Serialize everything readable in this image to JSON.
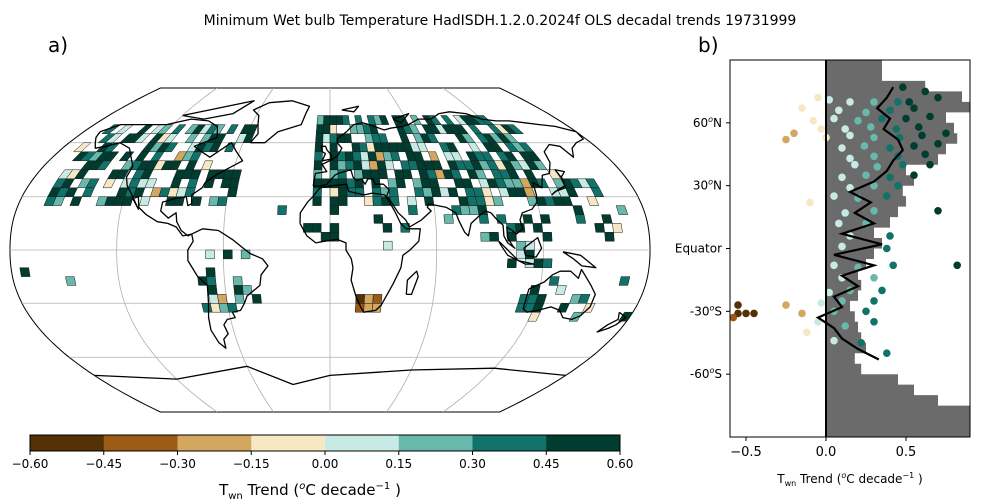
{
  "title": "Minimum Wet bulb Temperature HadISDH.1.2.0.2024f OLS decadal trends 19731999",
  "panel_a_label": "a)",
  "panel_b_label": "b)",
  "colorbar": {
    "ticks": [
      "−0.60",
      "−0.45",
      "−0.30",
      "−0.15",
      "0.00",
      "0.15",
      "0.30",
      "0.45",
      "0.60"
    ],
    "colors": [
      "#543005",
      "#9b5a16",
      "#d4a760",
      "#f6e8c3",
      "#c7eae5",
      "#68b8ab",
      "#117269",
      "#003c30"
    ],
    "label_main": "T",
    "label_sub": "wn",
    "label_rest_a": " Trend (",
    "label_sup_o": "o",
    "label_rest_b": "C decade",
    "label_sup_exp": "−1",
    "label_rest_c": " )"
  },
  "map_colors": {
    "land": "#ffffff",
    "grid": "#b0b0b0",
    "coast": "#000000"
  },
  "chart_data": [
    {
      "type": "map",
      "projection": "Robinson",
      "title": "Minimum Wet bulb Temperature HadISDH.1.2.0.2024f OLS decadal trends 19731999",
      "gridboxes": [
        {
          "region": "North America",
          "lat": [
            25,
            70
          ],
          "lon": [
            -165,
            -55
          ],
          "dominant_trend": 0.45
        },
        {
          "region": "Europe/Asia",
          "lat": [
            25,
            72
          ],
          "lon": [
            -10,
            140
          ],
          "dominant_trend": 0.45
        },
        {
          "region": "Southern Africa",
          "lat": [
            -35,
            -25
          ],
          "lon": [
            15,
            30
          ],
          "dominant_trend": -0.45
        },
        {
          "region": "South America",
          "lat": [
            -35,
            5
          ],
          "lon": [
            -75,
            -35
          ],
          "dominant_trend": 0.3
        },
        {
          "region": "Australia",
          "lat": [
            -40,
            -15
          ],
          "lon": [
            115,
            155
          ],
          "dominant_trend": 0.15
        }
      ]
    },
    {
      "type": "scatter",
      "xlabel_main": "T",
      "xlabel_sub": "wn",
      "xlabel_rest": " Trend (",
      "xlim": [
        -0.6,
        0.9
      ],
      "ylim": [
        -90,
        90
      ],
      "xticks": [
        "−0.5",
        "0.0",
        "0.5"
      ],
      "xtick_values": [
        -0.5,
        0.0,
        0.5
      ],
      "yticks": [
        "60",
        "30",
        "Equator",
        "-30",
        "-60"
      ],
      "ytick_values": [
        60,
        30,
        0,
        -30,
        -60
      ],
      "ytick_suffix_n": "N",
      "ytick_suffix_s": "S",
      "ytick_sup": "o",
      "xlabel_after_sup": "C decade",
      "xlabel_exp": "−1",
      "xlabel_close": " )",
      "zero_line": true,
      "coverage_profile_lat": [
        80,
        75,
        70,
        65,
        60,
        55,
        50,
        45,
        40,
        35,
        30,
        25,
        20,
        15,
        10,
        5,
        0,
        -5,
        -10,
        -15,
        -20,
        -25,
        -30,
        -35,
        -40,
        -45,
        -50,
        -55,
        -60,
        -65,
        -70,
        -75,
        -80,
        -85,
        -90
      ],
      "coverage_profile_x": [
        0.35,
        0.62,
        0.85,
        0.9,
        0.75,
        0.8,
        0.82,
        0.75,
        0.7,
        0.5,
        0.55,
        0.48,
        0.5,
        0.45,
        0.4,
        0.3,
        0.35,
        0.3,
        0.25,
        0.2,
        0.22,
        0.2,
        0.15,
        0.18,
        0.2,
        0.22,
        0.25,
        0.18,
        0.22,
        0.45,
        0.55,
        0.7,
        0.9,
        0.9,
        0.9
      ],
      "mean_line": {
        "lat": [
          77,
          72,
          67,
          62,
          57,
          52,
          47,
          42,
          37,
          32,
          27,
          22,
          17,
          12,
          7,
          2,
          -3,
          -8,
          -13,
          -18,
          -23,
          -28,
          -33,
          -38,
          -43,
          -48,
          -53
        ],
        "values": [
          0.42,
          0.38,
          0.32,
          0.4,
          0.36,
          0.45,
          0.48,
          0.42,
          0.38,
          0.3,
          0.15,
          0.28,
          0.18,
          0.3,
          0.1,
          0.35,
          0.05,
          0.3,
          0.1,
          0.2,
          0.05,
          0.1,
          -0.05,
          0.05,
          0.1,
          0.2,
          0.33
        ]
      },
      "points": [
        {
          "x": 0.48,
          "y": 77,
          "c": "#003c30"
        },
        {
          "x": 0.62,
          "y": 75,
          "c": "#003c30"
        },
        {
          "x": 0.7,
          "y": 72,
          "c": "#003c30"
        },
        {
          "x": 0.52,
          "y": 70,
          "c": "#003c30"
        },
        {
          "x": 0.45,
          "y": 70,
          "c": "#117269"
        },
        {
          "x": 0.3,
          "y": 70,
          "c": "#68b8ab"
        },
        {
          "x": 0.15,
          "y": 70,
          "c": "#c7eae5"
        },
        {
          "x": 0.02,
          "y": 71,
          "c": "#c7eae5"
        },
        {
          "x": -0.05,
          "y": 72,
          "c": "#f6e8c3"
        },
        {
          "x": 0.55,
          "y": 67,
          "c": "#003c30"
        },
        {
          "x": 0.4,
          "y": 66,
          "c": "#117269"
        },
        {
          "x": 0.25,
          "y": 65,
          "c": "#68b8ab"
        },
        {
          "x": 0.08,
          "y": 66,
          "c": "#c7eae5"
        },
        {
          "x": -0.15,
          "y": 67,
          "c": "#f6e8c3"
        },
        {
          "x": 0.65,
          "y": 63,
          "c": "#003c30"
        },
        {
          "x": 0.5,
          "y": 62,
          "c": "#003c30"
        },
        {
          "x": 0.35,
          "y": 62,
          "c": "#117269"
        },
        {
          "x": 0.2,
          "y": 61,
          "c": "#68b8ab"
        },
        {
          "x": 0.05,
          "y": 62,
          "c": "#c7eae5"
        },
        {
          "x": -0.08,
          "y": 61,
          "c": "#f6e8c3"
        },
        {
          "x": 0.58,
          "y": 58,
          "c": "#003c30"
        },
        {
          "x": 0.44,
          "y": 57,
          "c": "#117269"
        },
        {
          "x": 0.28,
          "y": 58,
          "c": "#68b8ab"
        },
        {
          "x": 0.12,
          "y": 57,
          "c": "#c7eae5"
        },
        {
          "x": -0.03,
          "y": 57,
          "c": "#f6e8c3"
        },
        {
          "x": 0.75,
          "y": 55,
          "c": "#003c30"
        },
        {
          "x": 0.6,
          "y": 54,
          "c": "#003c30"
        },
        {
          "x": 0.46,
          "y": 53,
          "c": "#117269"
        },
        {
          "x": 0.3,
          "y": 53,
          "c": "#68b8ab"
        },
        {
          "x": 0.15,
          "y": 54,
          "c": "#c7eae5"
        },
        {
          "x": 0.0,
          "y": 53,
          "c": "#f6e8c3"
        },
        {
          "x": -0.2,
          "y": 55,
          "c": "#d4a760"
        },
        {
          "x": -0.25,
          "y": 52,
          "c": "#d4a760"
        },
        {
          "x": 0.7,
          "y": 50,
          "c": "#003c30"
        },
        {
          "x": 0.55,
          "y": 49,
          "c": "#003c30"
        },
        {
          "x": 0.4,
          "y": 48,
          "c": "#117269"
        },
        {
          "x": 0.24,
          "y": 49,
          "c": "#68b8ab"
        },
        {
          "x": 0.1,
          "y": 48,
          "c": "#c7eae5"
        },
        {
          "x": 0.62,
          "y": 45,
          "c": "#003c30"
        },
        {
          "x": 0.45,
          "y": 44,
          "c": "#117269"
        },
        {
          "x": 0.3,
          "y": 44,
          "c": "#68b8ab"
        },
        {
          "x": 0.15,
          "y": 43,
          "c": "#c7eae5"
        },
        {
          "x": 0.65,
          "y": 40,
          "c": "#003c30"
        },
        {
          "x": 0.48,
          "y": 40,
          "c": "#117269"
        },
        {
          "x": 0.32,
          "y": 39,
          "c": "#68b8ab"
        },
        {
          "x": 0.18,
          "y": 40,
          "c": "#c7eae5"
        },
        {
          "x": 0.55,
          "y": 35,
          "c": "#003c30"
        },
        {
          "x": 0.4,
          "y": 34,
          "c": "#117269"
        },
        {
          "x": 0.25,
          "y": 35,
          "c": "#68b8ab"
        },
        {
          "x": 0.1,
          "y": 34,
          "c": "#c7eae5"
        },
        {
          "x": 0.45,
          "y": 30,
          "c": "#117269"
        },
        {
          "x": 0.3,
          "y": 30,
          "c": "#68b8ab"
        },
        {
          "x": 0.15,
          "y": 29,
          "c": "#c7eae5"
        },
        {
          "x": -0.1,
          "y": 22,
          "c": "#f6e8c3"
        },
        {
          "x": 0.38,
          "y": 25,
          "c": "#117269"
        },
        {
          "x": 0.2,
          "y": 24,
          "c": "#68b8ab"
        },
        {
          "x": 0.05,
          "y": 25,
          "c": "#c7eae5"
        },
        {
          "x": 0.7,
          "y": 18,
          "c": "#003c30"
        },
        {
          "x": 0.3,
          "y": 18,
          "c": "#68b8ab"
        },
        {
          "x": 0.12,
          "y": 17,
          "c": "#c7eae5"
        },
        {
          "x": 0.25,
          "y": 12,
          "c": "#68b8ab"
        },
        {
          "x": 0.08,
          "y": 12,
          "c": "#c7eae5"
        },
        {
          "x": 0.4,
          "y": 6,
          "c": "#117269"
        },
        {
          "x": 0.15,
          "y": 6,
          "c": "#c7eae5"
        },
        {
          "x": 0.38,
          "y": 0,
          "c": "#117269"
        },
        {
          "x": 0.1,
          "y": 1,
          "c": "#c7eae5"
        },
        {
          "x": 0.82,
          "y": -8,
          "c": "#003c30"
        },
        {
          "x": 0.42,
          "y": -8,
          "c": "#117269"
        },
        {
          "x": 0.2,
          "y": -9,
          "c": "#68b8ab"
        },
        {
          "x": 0.05,
          "y": -8,
          "c": "#c7eae5"
        },
        {
          "x": 0.3,
          "y": -14,
          "c": "#68b8ab"
        },
        {
          "x": 0.1,
          "y": -14,
          "c": "#c7eae5"
        },
        {
          "x": 0.35,
          "y": -20,
          "c": "#117269"
        },
        {
          "x": 0.15,
          "y": -20,
          "c": "#68b8ab"
        },
        {
          "x": 0.02,
          "y": -21,
          "c": "#c7eae5"
        },
        {
          "x": 0.3,
          "y": -25,
          "c": "#117269"
        },
        {
          "x": 0.1,
          "y": -25,
          "c": "#68b8ab"
        },
        {
          "x": -0.03,
          "y": -26,
          "c": "#c7eae5"
        },
        {
          "x": -0.55,
          "y": -27,
          "c": "#543005"
        },
        {
          "x": -0.55,
          "y": -31,
          "c": "#543005"
        },
        {
          "x": -0.5,
          "y": -31,
          "c": "#543005"
        },
        {
          "x": -0.45,
          "y": -31,
          "c": "#543005"
        },
        {
          "x": -0.58,
          "y": -33,
          "c": "#9b5a16"
        },
        {
          "x": -0.25,
          "y": -27,
          "c": "#d4a760"
        },
        {
          "x": -0.15,
          "y": -31,
          "c": "#d4a760"
        },
        {
          "x": 0.25,
          "y": -30,
          "c": "#117269"
        },
        {
          "x": 0.05,
          "y": -30,
          "c": "#68b8ab"
        },
        {
          "x": -0.05,
          "y": -35,
          "c": "#c7eae5"
        },
        {
          "x": -0.12,
          "y": -40,
          "c": "#f6e8c3"
        },
        {
          "x": 0.3,
          "y": -35,
          "c": "#117269"
        },
        {
          "x": 0.12,
          "y": -37,
          "c": "#68b8ab"
        },
        {
          "x": 0.05,
          "y": -44,
          "c": "#c7eae5"
        },
        {
          "x": 0.22,
          "y": -45,
          "c": "#117269"
        },
        {
          "x": 0.38,
          "y": -50,
          "c": "#117269"
        }
      ]
    }
  ]
}
